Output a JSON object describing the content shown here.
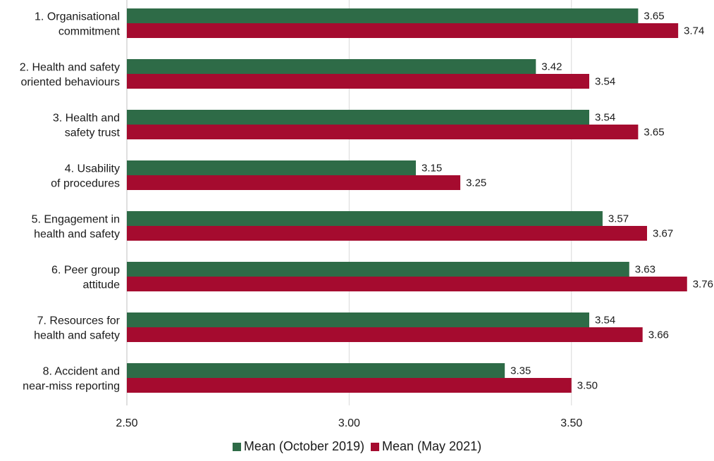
{
  "chart_data": {
    "type": "bar",
    "orientation": "horizontal",
    "categories": [
      "1. Organisational\ncommitment",
      "2. Health and safety\noriented behaviours",
      "3. Health and\nsafety trust",
      "4. Usability\nof procedures",
      "5. Engagement in\nhealth and safety",
      "6. Peer group\nattitude",
      "7. Resources for\nhealth and safety",
      "8. Accident and\nnear-miss reporting"
    ],
    "series": [
      {
        "name": "Mean (October 2019)",
        "color": "#2e6b47",
        "values": [
          3.65,
          3.42,
          3.54,
          3.15,
          3.57,
          3.63,
          3.54,
          3.35
        ],
        "labels": [
          "3.65",
          "3.42",
          "3.54",
          "3.15",
          "3.57",
          "3.63",
          "3.54",
          "3.35"
        ]
      },
      {
        "name": "Mean (May 2021)",
        "color": "#a50b2f",
        "values": [
          3.74,
          3.54,
          3.65,
          3.25,
          3.67,
          3.76,
          3.66,
          3.5
        ],
        "labels": [
          "3.74",
          "3.54",
          "3.65",
          "3.25",
          "3.67",
          "3.76",
          "3.66",
          "3.50"
        ]
      }
    ],
    "xlim": [
      2.5,
      3.8
    ],
    "ticks": [
      2.5,
      3.0,
      3.5
    ],
    "tick_labels": [
      "2.50",
      "3.00",
      "3.50"
    ],
    "grid": true,
    "legend_position": "bottom"
  }
}
